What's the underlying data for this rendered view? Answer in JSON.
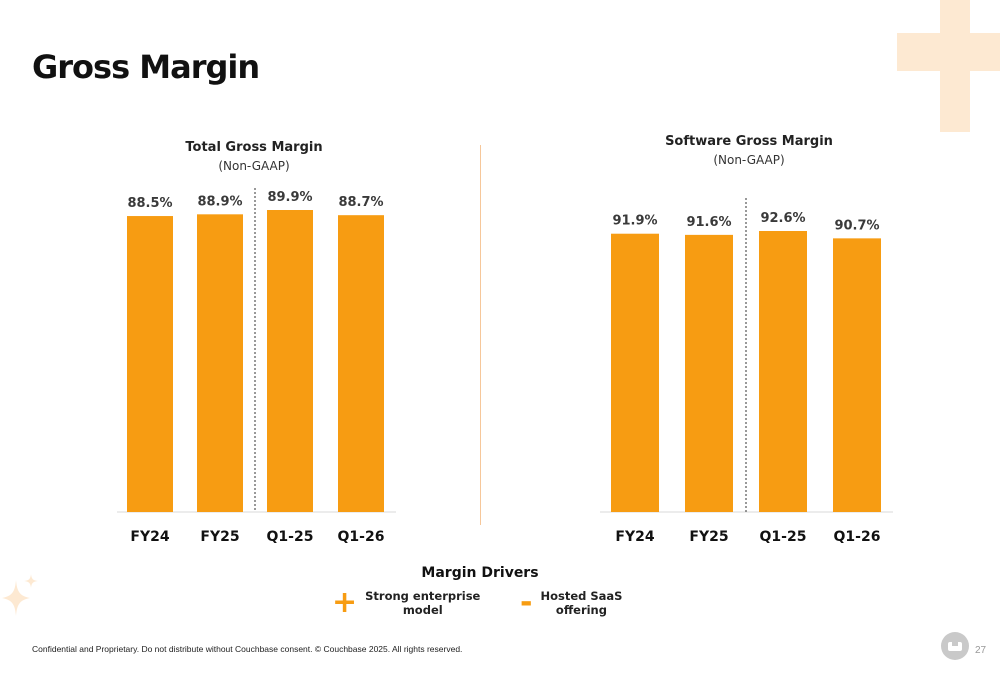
{
  "page": {
    "title": "Gross Margin",
    "footer": "Confidential and Proprietary. Do not distribute without Couchbase consent. © Couchbase 2025. All rights reserved.",
    "page_number": "27"
  },
  "colors": {
    "bar": "#f79c12",
    "accent_light": "#fde9d2",
    "divider": "#f6c79a"
  },
  "drivers": {
    "title": "Margin Drivers",
    "items": [
      {
        "symbol": "+",
        "label": "Strong enterprise\nmodel"
      },
      {
        "symbol": "-",
        "label": "Hosted SaaS\noffering"
      }
    ]
  },
  "chart_data": [
    {
      "type": "bar",
      "title": "Total Gross Margin",
      "subtitle": "(Non-GAAP)",
      "categories": [
        "FY24",
        "FY25",
        "Q1-25",
        "Q1-26"
      ],
      "values": [
        88.5,
        88.9,
        89.9,
        88.7
      ],
      "data_labels": [
        "88.5%",
        "88.9%",
        "89.9%",
        "88.7%"
      ],
      "separator_after_index": 1,
      "grid": false
    },
    {
      "type": "bar",
      "title": "Software Gross Margin",
      "subtitle": "(Non-GAAP)",
      "categories": [
        "FY24",
        "FY25",
        "Q1-25",
        "Q1-26"
      ],
      "values": [
        91.9,
        91.6,
        92.6,
        90.7
      ],
      "data_labels": [
        "91.9%",
        "91.6%",
        "92.6%",
        "90.7%"
      ],
      "separator_after_index": 1,
      "grid": false
    }
  ]
}
